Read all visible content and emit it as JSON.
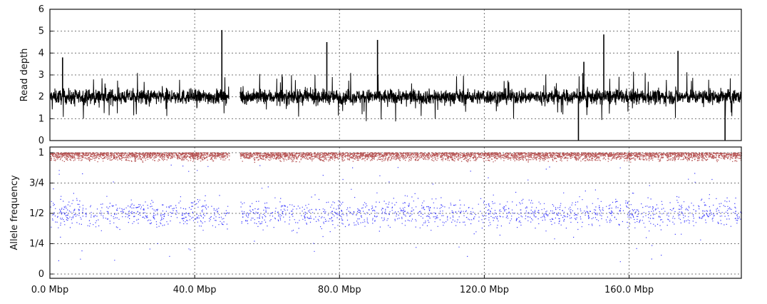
{
  "chart_data": [
    {
      "type": "line",
      "ylabel": "Read depth",
      "ylim": [
        0,
        6
      ],
      "yticks": [
        "0",
        "1",
        "2",
        "3",
        "4",
        "5",
        "6"
      ],
      "xlim": [
        0,
        191
      ],
      "grid": true,
      "series": [
        {
          "color": "#000000",
          "baseline": 2.0,
          "typical_range": [
            1.0,
            3.2
          ],
          "gaps": [
            [
              49.5,
              52.5
            ]
          ],
          "spikes": [
            {
              "x": 3.5,
              "y": 3.8
            },
            {
              "x": 47.5,
              "y": 5.05
            },
            {
              "x": 76.5,
              "y": 4.5
            },
            {
              "x": 90.5,
              "y": 4.6
            },
            {
              "x": 147.5,
              "y": 3.6
            },
            {
              "x": 153.0,
              "y": 4.85
            },
            {
              "x": 173.5,
              "y": 4.1
            },
            {
              "x": 146.0,
              "y": 0.0
            },
            {
              "x": 186.5,
              "y": 0.0
            }
          ]
        }
      ]
    },
    {
      "type": "scatter",
      "ylabel": "Allele frequency",
      "ylim": [
        0,
        1
      ],
      "yticks": [
        "0",
        "1/4",
        "1/2",
        "3/4",
        "1"
      ],
      "xlim": [
        0,
        191
      ],
      "xticks": [
        "0.0 Mbp",
        "40.0 Mbp",
        "80.0 Mbp",
        "120.0 Mbp",
        "160.0 Mbp"
      ],
      "xtick_values": [
        0,
        40,
        80,
        120,
        160
      ],
      "grid": true,
      "series": [
        {
          "color": "#0000ff",
          "center": 0.5,
          "spread": [
            0.15,
            0.85
          ]
        },
        {
          "color": "#b03030",
          "center": 0.97,
          "spread": [
            0.92,
            1.0
          ]
        }
      ],
      "gaps": [
        [
          49.5,
          52.5
        ]
      ]
    }
  ],
  "colors": {
    "depth": "#000000",
    "het": "#1a1aff",
    "hom": "#a52a2a"
  }
}
